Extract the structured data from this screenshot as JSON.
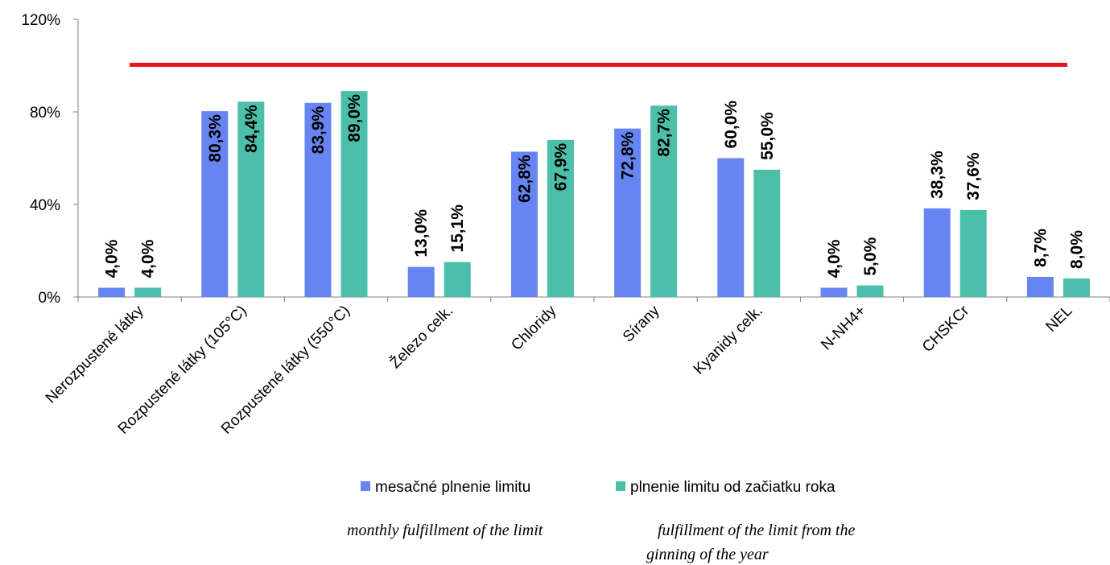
{
  "chart_data": {
    "type": "bar",
    "categories": [
      "Nerozpustené látky",
      "Rozpustené látky (105°C)",
      "Rozpustené látky (550°C)",
      "Železo celk.",
      "Chloridy",
      "Sírany",
      "Kyanidy celk.",
      "N-NH4+",
      "CHSKCr",
      "NEL"
    ],
    "series": [
      {
        "name": "mesačné plnenie limitu",
        "color": "#6685f2",
        "values": [
          4.0,
          80.3,
          83.9,
          13.0,
          62.8,
          72.8,
          60.0,
          4.0,
          38.3,
          8.7
        ],
        "labels": [
          "4,0%",
          "80,3%",
          "83,9%",
          "13,0%",
          "62,8%",
          "72,8%",
          "60,0%",
          "4,0%",
          "38,3%",
          "8,7%"
        ]
      },
      {
        "name": "plnenie limitu od začiatku roka",
        "color": "#4bbfa9",
        "values": [
          4.0,
          84.4,
          89.0,
          15.1,
          67.9,
          82.7,
          55.0,
          5.0,
          37.6,
          8.0
        ],
        "labels": [
          "4,0%",
          "84,4%",
          "89,0%",
          "15,1%",
          "67,9%",
          "82,7%",
          "55,0%",
          "5,0%",
          "37,6%",
          "8,0%"
        ]
      }
    ],
    "limit_line": {
      "value": 100,
      "color": "#e8131a"
    },
    "y_ticks": [
      "0%",
      "40%",
      "80%",
      "120%"
    ],
    "ylim": [
      0,
      120
    ],
    "grid": false,
    "legend_position": "bottom"
  },
  "translations": {
    "series1": "monthly fulfillment of the limit",
    "series2_line1": "fulfillment of the limit from the",
    "series2_line2": "ginning of the year"
  }
}
